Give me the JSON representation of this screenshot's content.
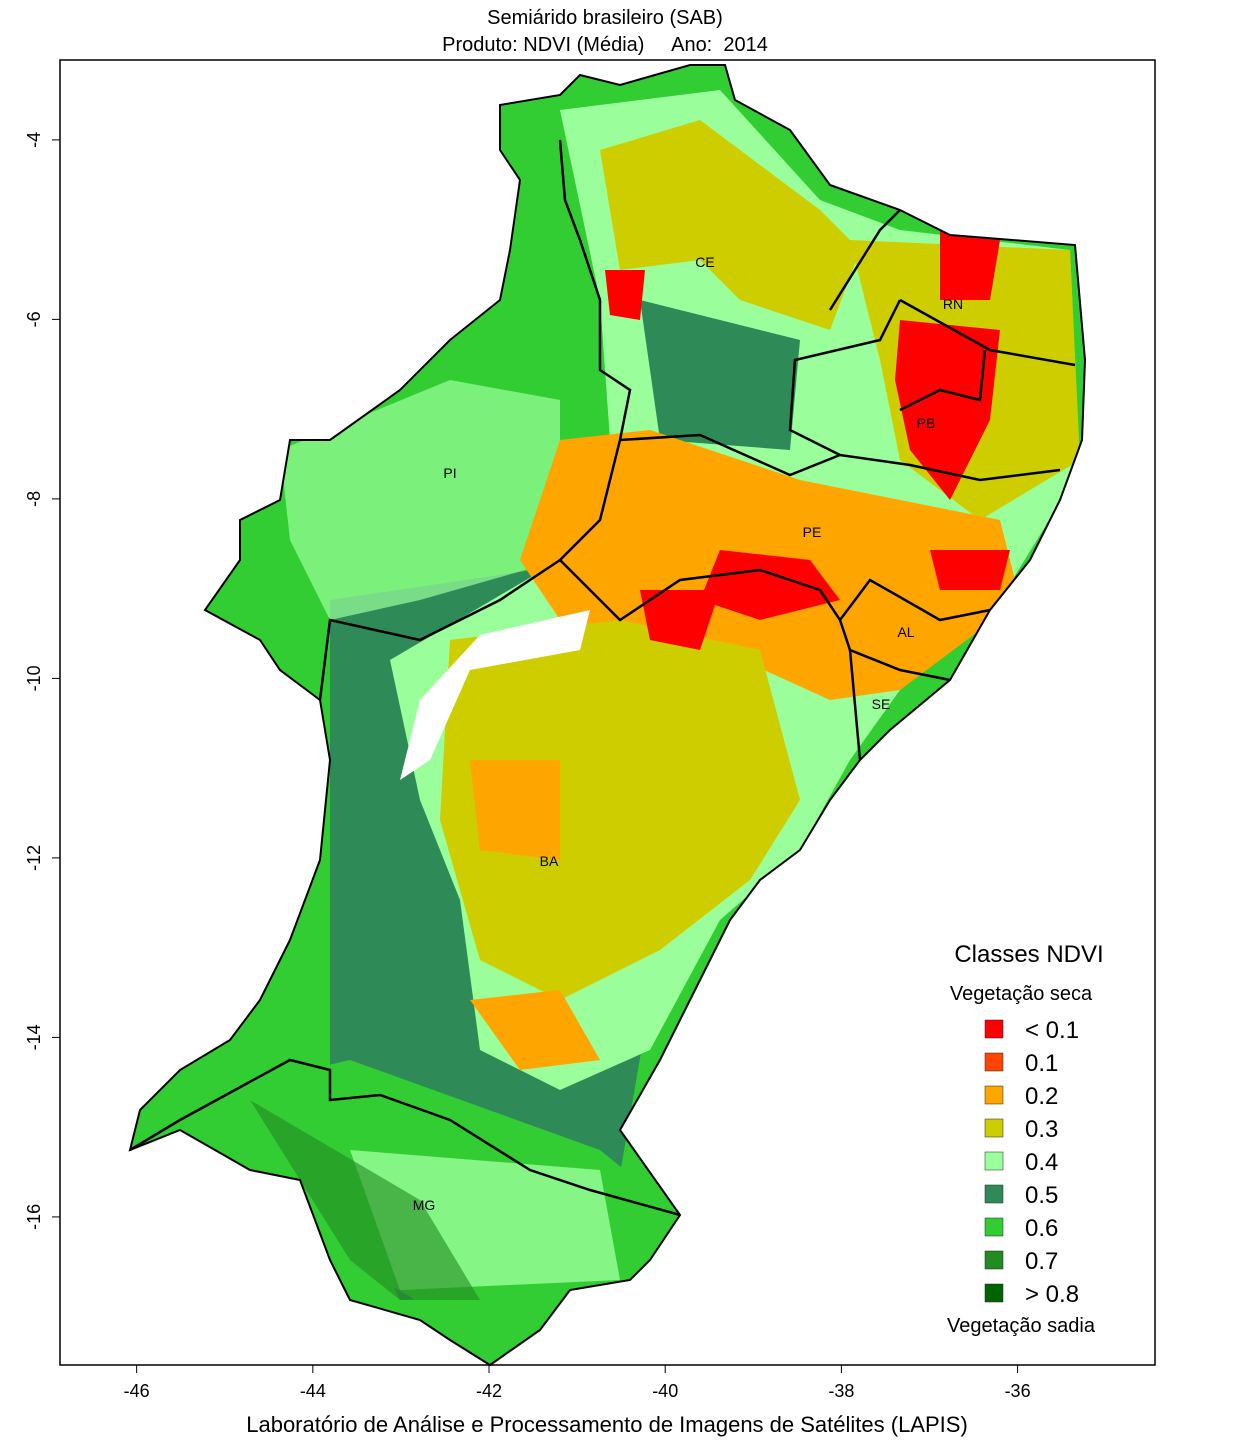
{
  "chart_data": {
    "type": "map",
    "title": "Semiárido brasileiro (SAB)",
    "subtitle": "Produto: NDVI (Média)     Ano:  2014",
    "x_label": "Laboratório de Análise e Processamento de Imagens de Satélites (LAPIS)",
    "xlim": [
      -46.87,
      -34.44
    ],
    "ylim": [
      -17.65,
      -3.11
    ],
    "xticks": [
      -46,
      -44,
      -42,
      -40,
      -38,
      -36
    ],
    "yticks": [
      -4,
      -6,
      -8,
      -10,
      -12,
      -14,
      -16
    ],
    "regions": [
      "CE",
      "RN",
      "PB",
      "PI",
      "PE",
      "AL",
      "SE",
      "BA",
      "MG"
    ],
    "legend": {
      "title": "Classes NDVI",
      "top_note": "Vegetação seca",
      "bottom_note": "Vegetação sadia",
      "items": [
        {
          "label": "< 0.1",
          "color": "#ff0000"
        },
        {
          "label": "0.1",
          "color": "#ff4500"
        },
        {
          "label": "0.2",
          "color": "#ffa500"
        },
        {
          "label": "0.3",
          "color": "#cdcd00"
        },
        {
          "label": "0.4",
          "color": "#9aff9a"
        },
        {
          "label": "0.5",
          "color": "#2e8b57"
        },
        {
          "label": "0.6",
          "color": "#32cd32"
        },
        {
          "label": "0.7",
          "color": "#228b22"
        },
        {
          "label": "> 0.8",
          "color": "#006400"
        }
      ]
    }
  }
}
